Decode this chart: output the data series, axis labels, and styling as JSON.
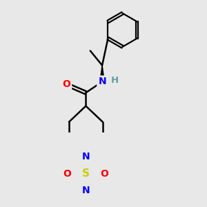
{
  "background_color": "#e8e8e8",
  "bond_color": "#000000",
  "atom_colors": {
    "N": "#0000ff",
    "O": "#ff0000",
    "S": "#cccc00",
    "H": "#5f9ea0",
    "C": "#000000"
  },
  "figsize": [
    3.0,
    3.0
  ],
  "dpi": 100
}
